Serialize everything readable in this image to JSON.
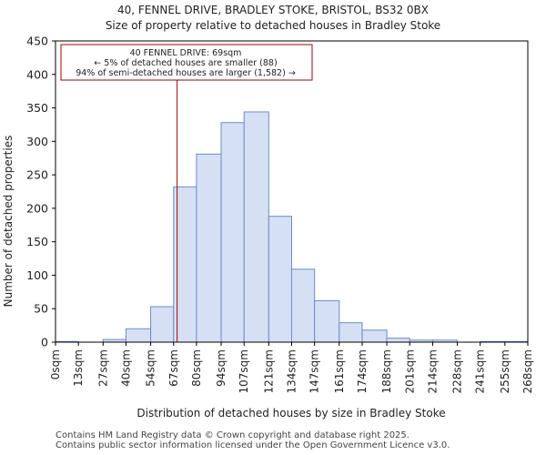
{
  "chart_data": {
    "type": "bar",
    "title": "40, FENNEL DRIVE, BRADLEY STOKE, BRISTOL, BS32 0BX",
    "subtitle": "Size of property relative to detached houses in Bradley Stoke",
    "xlabel": "Distribution of detached houses by size in Bradley Stoke",
    "ylabel": "Number of detached properties",
    "ylim": [
      0,
      450
    ],
    "yticks": [
      0,
      50,
      100,
      150,
      200,
      250,
      300,
      350,
      400,
      450
    ],
    "xlim": [
      0,
      268
    ],
    "bin_edges": [
      0,
      13,
      27,
      40,
      54,
      67,
      80,
      94,
      107,
      121,
      134,
      147,
      161,
      174,
      188,
      201,
      214,
      228,
      241,
      255,
      268
    ],
    "tick_labels": [
      "0sqm",
      "13sqm",
      "27sqm",
      "40sqm",
      "54sqm",
      "67sqm",
      "80sqm",
      "94sqm",
      "107sqm",
      "121sqm",
      "134sqm",
      "147sqm",
      "161sqm",
      "174sqm",
      "188sqm",
      "201sqm",
      "214sqm",
      "228sqm",
      "241sqm",
      "255sqm",
      "268sqm"
    ],
    "values": [
      1,
      0,
      4,
      20,
      53,
      232,
      281,
      328,
      344,
      188,
      109,
      62,
      29,
      18,
      6,
      3,
      3,
      0,
      1,
      1
    ],
    "bar_color": "#d6e0f4",
    "bar_edge_color": "#6b8ccc",
    "marker": {
      "value": 69,
      "color": "#aa0000",
      "label_lines": [
        "40 FENNEL DRIVE: 69sqm",
        "← 5% of detached houses are smaller (88)",
        "94% of semi-detached houses are larger (1,582) →"
      ]
    }
  },
  "footer": {
    "line1": "Contains HM Land Registry data © Crown copyright and database right 2025.",
    "line2": "Contains public sector information licensed under the Open Government Licence v3.0."
  }
}
